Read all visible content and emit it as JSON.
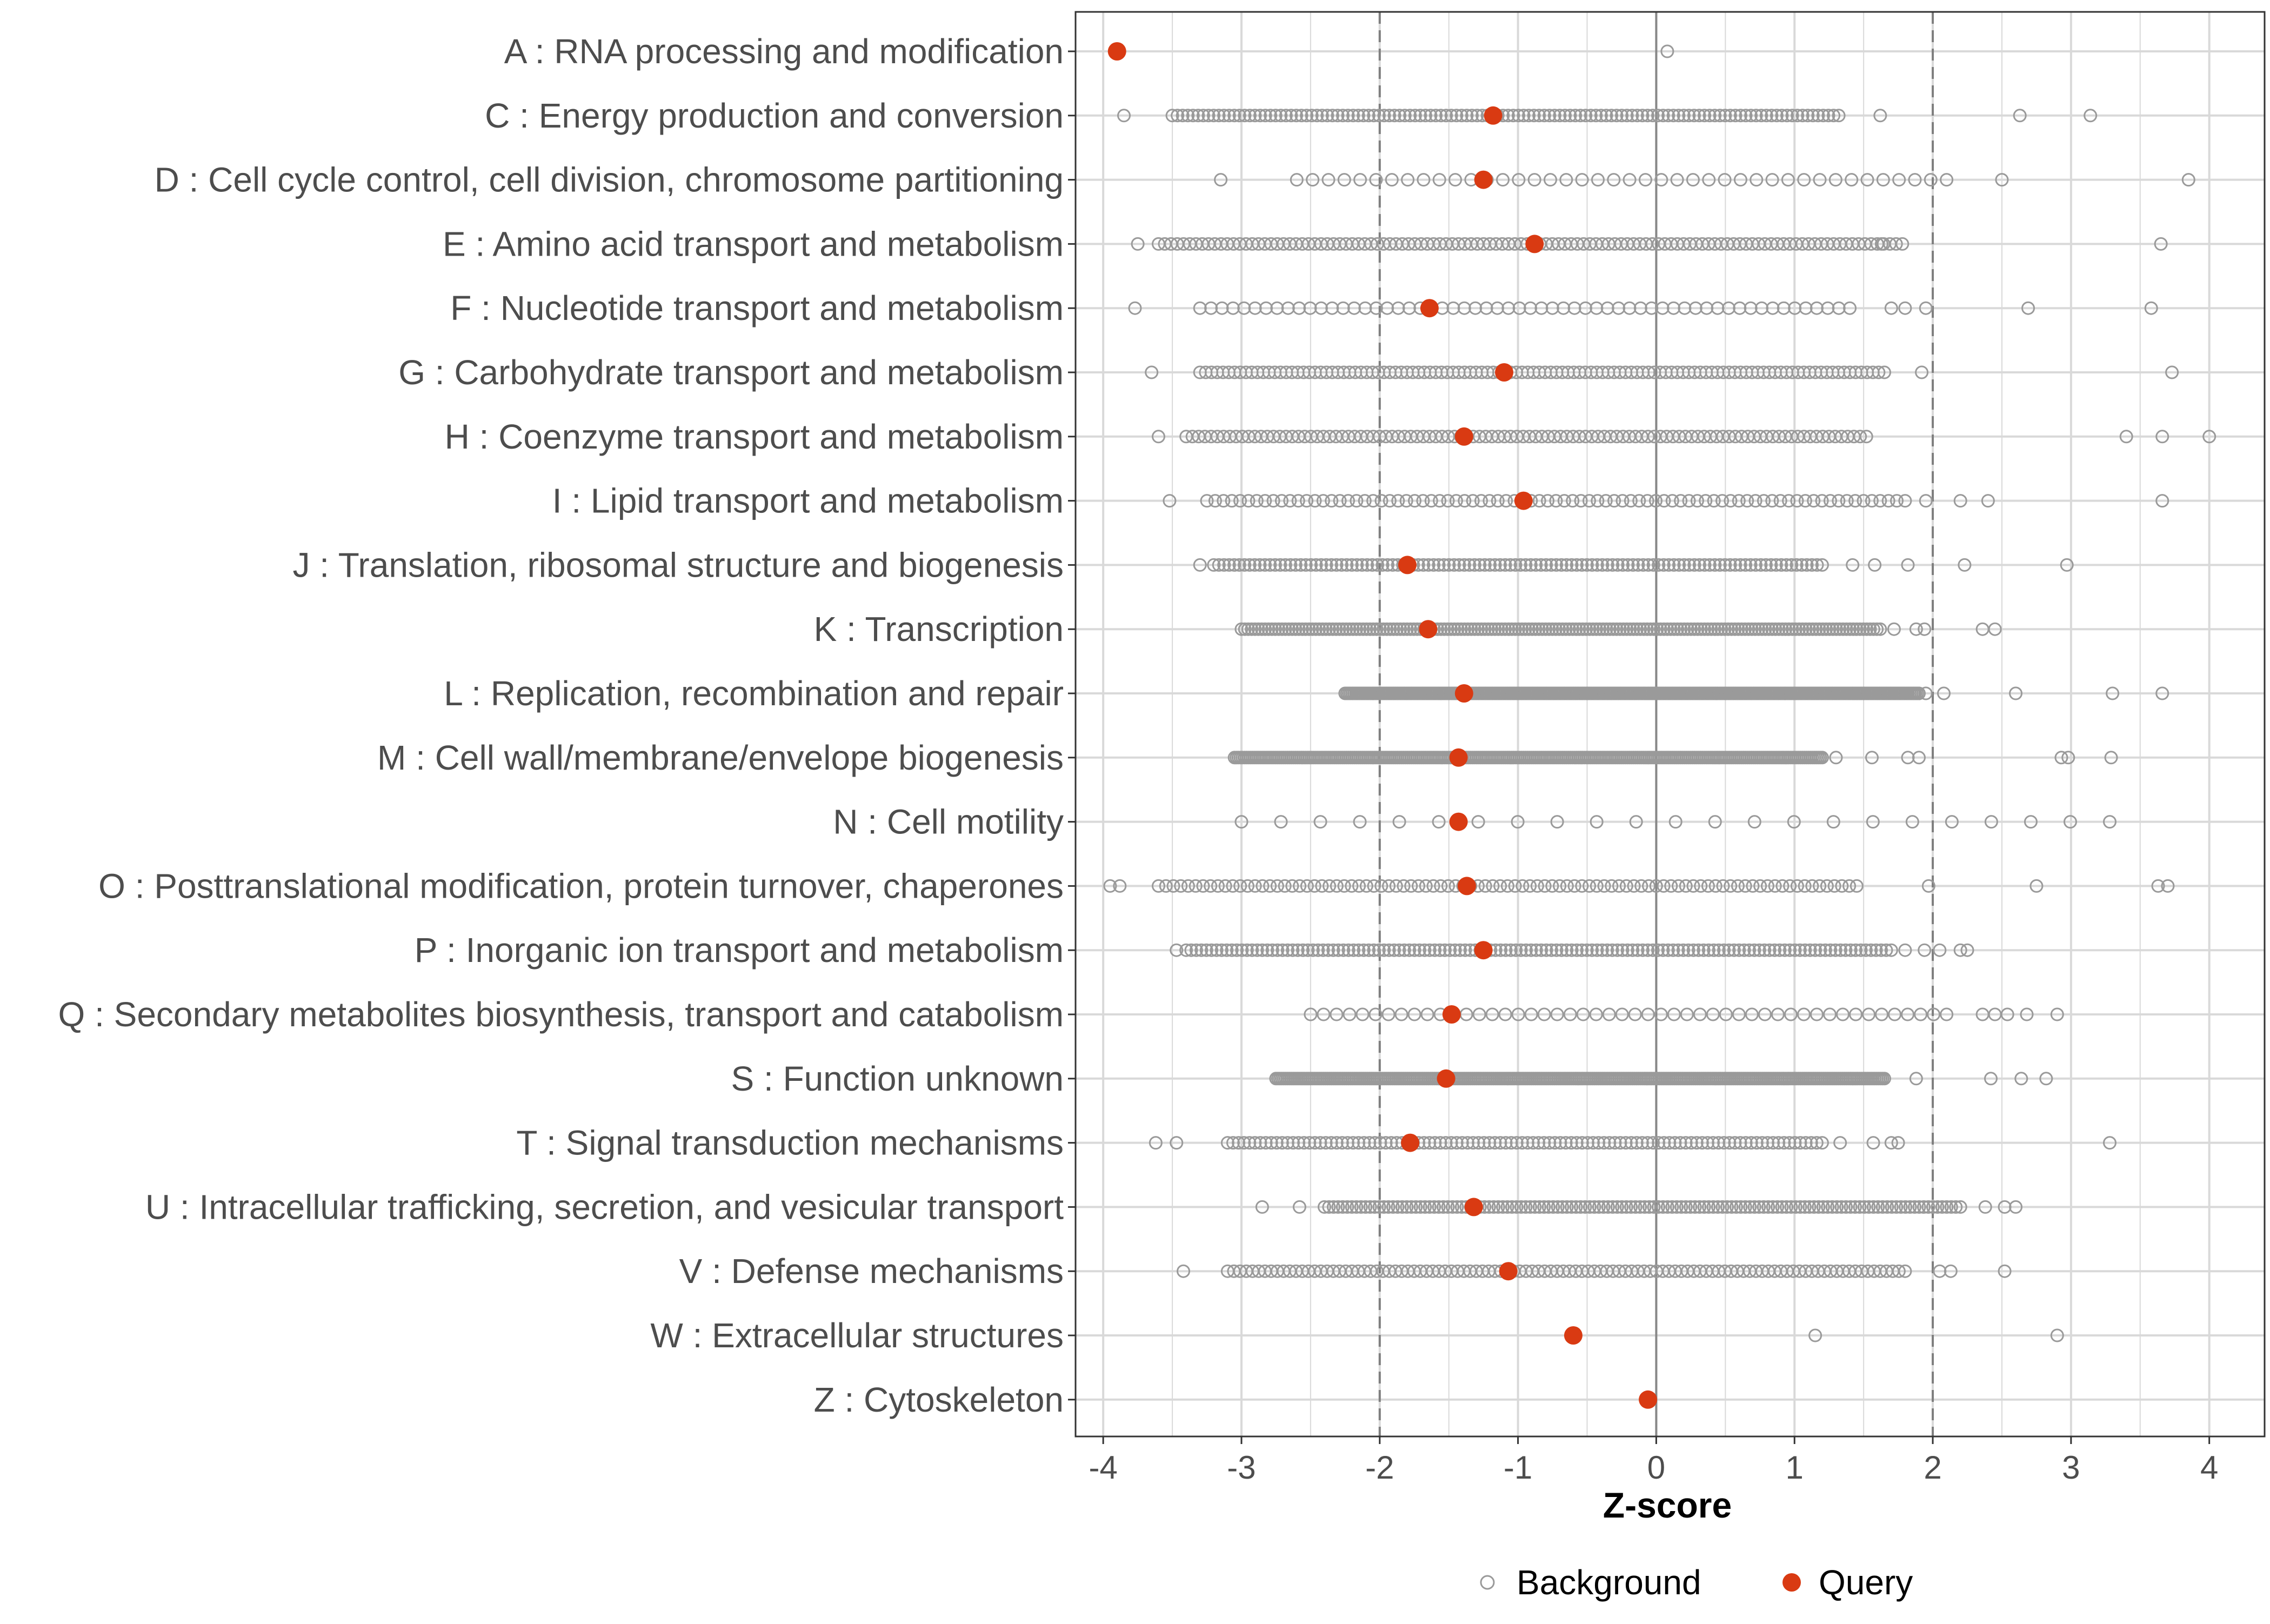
{
  "colors": {
    "query": "#D93A12",
    "background_stroke": "#9A9A9A",
    "grid": "#D9D9D9",
    "panel_border": "#333333",
    "label": "#4D4D4D",
    "zero_line": "#888888",
    "threshold_line": "#7F7F7F"
  },
  "chart_data": {
    "type": "scatter",
    "title": "",
    "xlabel": "Z-score",
    "ylabel": "",
    "xlim": [
      -4.2,
      4.4
    ],
    "x_ticks": [
      -4,
      -3,
      -2,
      -1,
      0,
      1,
      2,
      3,
      4
    ],
    "x_tick_labels": [
      "-4",
      "-3",
      "-2",
      "-1",
      "0",
      "1",
      "2",
      "3",
      "4"
    ],
    "reference_lines": [
      {
        "x": 0,
        "style": "solid"
      },
      {
        "x": -2,
        "style": "dashed"
      },
      {
        "x": 2,
        "style": "dashed"
      }
    ],
    "legend": {
      "position": "bottom",
      "entries": [
        {
          "label": "Background",
          "marker": "open-circle"
        },
        {
          "label": "Query",
          "marker": "filled-circle"
        }
      ]
    },
    "categories": [
      "A : RNA processing and modification",
      "C : Energy production and conversion",
      "D : Cell cycle control, cell division, chromosome partitioning",
      "E : Amino acid transport and metabolism",
      "F : Nucleotide transport and metabolism",
      "G : Carbohydrate transport and metabolism",
      "H : Coenzyme transport and metabolism",
      "I : Lipid transport and metabolism",
      "J : Translation, ribosomal structure and biogenesis",
      "K : Transcription",
      "L : Replication, recombination and repair",
      "M : Cell wall/membrane/envelope biogenesis",
      "N : Cell motility",
      "O : Posttranslational modification, protein turnover, chaperones",
      "P : Inorganic ion transport and metabolism",
      "Q : Secondary metabolites biosynthesis, transport and catabolism",
      "S : Function unknown",
      "T : Signal transduction mechanisms",
      "U : Intracellular trafficking, secretion, and vesicular transport",
      "V : Defense mechanisms",
      "W : Extracellular structures",
      "Z : Cytoskeleton"
    ],
    "series": [
      {
        "name": "Query",
        "values": [
          -3.9,
          -1.18,
          -1.25,
          -0.88,
          -1.64,
          -1.1,
          -1.39,
          -0.96,
          -1.8,
          -1.65,
          -1.39,
          -1.43,
          -1.43,
          -1.37,
          -1.25,
          -1.48,
          -1.52,
          -1.78,
          -1.32,
          -1.07,
          -0.6,
          -0.06
        ]
      },
      {
        "name": "Background",
        "ranges": [
          {
            "min": 0.08,
            "max": 0.08,
            "n": 1,
            "extras": []
          },
          {
            "min": -3.5,
            "max": 1.32,
            "n": 130,
            "extras": [
              -3.85,
              1.62,
              2.63,
              3.14
            ]
          },
          {
            "min": -2.6,
            "max": 2.1,
            "n": 42,
            "extras": [
              -3.15,
              2.5,
              3.85
            ]
          },
          {
            "min": -3.6,
            "max": 1.78,
            "n": 120,
            "extras": [
              -3.75,
              1.63,
              3.65
            ]
          },
          {
            "min": -3.3,
            "max": 1.4,
            "n": 60,
            "extras": [
              -3.77,
              1.7,
              1.8,
              1.95,
              2.69,
              3.58
            ]
          },
          {
            "min": -3.3,
            "max": 1.65,
            "n": 120,
            "extras": [
              -3.65,
              1.92,
              3.73
            ]
          },
          {
            "min": -3.4,
            "max": 1.52,
            "n": 110,
            "extras": [
              -3.6,
              3.4,
              3.66,
              4.0
            ]
          },
          {
            "min": -3.25,
            "max": 1.8,
            "n": 85,
            "extras": [
              -3.52,
              1.95,
              2.2,
              2.4,
              3.66
            ]
          },
          {
            "min": -3.2,
            "max": 1.2,
            "n": 120,
            "extras": [
              -3.3,
              1.42,
              1.58,
              1.82,
              2.23,
              2.97
            ]
          },
          {
            "min": -3.0,
            "max": 1.62,
            "n": 190,
            "extras": [
              1.72,
              1.88,
              1.94,
              2.36,
              2.45
            ]
          },
          {
            "min": -2.25,
            "max": 1.9,
            "n": 320,
            "extras": [
              1.95,
              2.08,
              2.6,
              3.3,
              3.66
            ]
          },
          {
            "min": -3.05,
            "max": 1.2,
            "n": 300,
            "extras": [
              1.3,
              1.56,
              1.82,
              1.9,
              2.93,
              2.98,
              3.29
            ]
          },
          {
            "min": -3.0,
            "max": 3.28,
            "n": 23,
            "extras": []
          },
          {
            "min": -3.6,
            "max": 1.45,
            "n": 95,
            "extras": [
              -3.95,
              -3.88,
              1.97,
              2.75,
              3.63,
              3.7
            ]
          },
          {
            "min": -3.4,
            "max": 1.7,
            "n": 140,
            "extras": [
              -3.47,
              1.8,
              1.94,
              2.05,
              2.2,
              2.25
            ]
          },
          {
            "min": -2.5,
            "max": 2.1,
            "n": 50,
            "extras": [
              2.36,
              2.45,
              2.54,
              2.68,
              2.9
            ]
          },
          {
            "min": -2.75,
            "max": 1.65,
            "n": 320,
            "extras": [
              1.88,
              2.42,
              2.64,
              2.82
            ]
          },
          {
            "min": -3.1,
            "max": 1.2,
            "n": 110,
            "extras": [
              -3.62,
              -3.47,
              1.33,
              1.57,
              1.7,
              1.75,
              3.28
            ]
          },
          {
            "min": -2.4,
            "max": 2.2,
            "n": 140,
            "extras": [
              -2.85,
              -2.58,
              2.38,
              2.52,
              2.6
            ]
          },
          {
            "min": -3.1,
            "max": 1.8,
            "n": 110,
            "extras": [
              -3.42,
              2.05,
              2.13,
              2.52
            ]
          },
          {
            "min": 1.15,
            "max": 2.9,
            "n": 2,
            "extras": []
          },
          {
            "min": 0,
            "max": 0,
            "n": 0,
            "extras": []
          }
        ]
      }
    ]
  }
}
